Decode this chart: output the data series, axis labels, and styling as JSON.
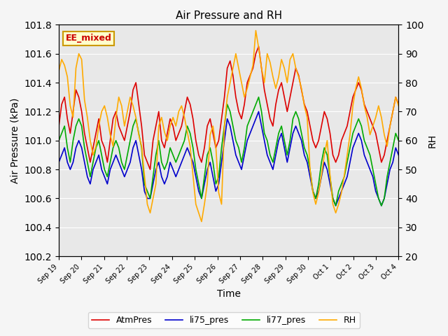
{
  "title": "Air Pressure and RH",
  "xlabel": "Time",
  "ylabel_left": "Air Pressure (kPa)",
  "ylabel_right": "RH",
  "ylim_left": [
    100.2,
    101.8
  ],
  "ylim_right": [
    20,
    100
  ],
  "background_color": "#e8e8e8",
  "annotation_text": "EE_mixed",
  "annotation_bg": "#ffffcc",
  "annotation_border": "#cc9900",
  "annotation_text_color": "#cc0000",
  "legend_entries": [
    "AtmPres",
    "li75_pres",
    "li77_pres",
    "RH"
  ],
  "line_colors": [
    "#dd0000",
    "#0000cc",
    "#00aa00",
    "#ffaa00"
  ],
  "x_tick_labels": [
    "Sep 19",
    "Sep 20",
    "Sep 21",
    "Sep 22",
    "Sep 23",
    "Sep 24",
    "Sep 25",
    "Sep 26",
    "Sep 27",
    "Sep 28",
    "Sep 29",
    "Sep 30",
    "Oct 1",
    "Oct 2",
    "Oct 3",
    "Oct 4"
  ],
  "atm_pres": [
    101.1,
    101.25,
    101.3,
    101.15,
    101.05,
    101.2,
    101.35,
    101.3,
    101.2,
    101.05,
    100.95,
    100.85,
    100.95,
    101.05,
    101.15,
    101.0,
    100.95,
    100.85,
    101.0,
    101.15,
    101.2,
    101.1,
    101.05,
    101.0,
    101.1,
    101.2,
    101.35,
    101.4,
    101.25,
    101.1,
    100.9,
    100.85,
    100.8,
    101.0,
    101.1,
    101.2,
    101.0,
    100.95,
    101.05,
    101.15,
    101.1,
    101.0,
    101.05,
    101.1,
    101.2,
    101.3,
    101.25,
    101.15,
    101.0,
    100.9,
    100.85,
    100.95,
    101.1,
    101.15,
    101.05,
    100.95,
    101.0,
    101.15,
    101.3,
    101.5,
    101.55,
    101.45,
    101.3,
    101.2,
    101.15,
    101.25,
    101.4,
    101.45,
    101.5,
    101.6,
    101.65,
    101.5,
    101.35,
    101.25,
    101.15,
    101.1,
    101.25,
    101.35,
    101.4,
    101.3,
    101.2,
    101.3,
    101.4,
    101.5,
    101.45,
    101.35,
    101.25,
    101.2,
    101.1,
    101.0,
    100.95,
    101.0,
    101.1,
    101.2,
    101.15,
    101.05,
    100.9,
    100.85,
    100.9,
    101.0,
    101.05,
    101.1,
    101.2,
    101.3,
    101.35,
    101.4,
    101.35,
    101.25,
    101.2,
    101.15,
    101.1,
    101.05,
    100.95,
    100.85,
    100.9,
    101.0,
    101.1,
    101.2,
    101.3,
    101.25
  ],
  "li75_pres": [
    100.85,
    100.9,
    100.95,
    100.85,
    100.8,
    100.85,
    100.95,
    101.0,
    100.95,
    100.85,
    100.75,
    100.7,
    100.8,
    100.85,
    100.9,
    100.8,
    100.75,
    100.7,
    100.8,
    100.85,
    100.9,
    100.85,
    100.8,
    100.75,
    100.8,
    100.85,
    100.95,
    101.0,
    100.9,
    100.8,
    100.65,
    100.6,
    100.6,
    100.7,
    100.8,
    100.85,
    100.75,
    100.7,
    100.75,
    100.85,
    100.8,
    100.75,
    100.8,
    100.85,
    100.9,
    100.95,
    100.9,
    100.85,
    100.75,
    100.65,
    100.6,
    100.7,
    100.8,
    100.85,
    100.75,
    100.65,
    100.7,
    100.85,
    101.0,
    101.15,
    101.1,
    101.0,
    100.9,
    100.85,
    100.8,
    100.9,
    101.0,
    101.05,
    101.1,
    101.15,
    101.2,
    101.1,
    101.0,
    100.9,
    100.85,
    100.8,
    100.9,
    101.0,
    101.05,
    100.95,
    100.85,
    100.95,
    101.05,
    101.1,
    101.05,
    101.0,
    100.9,
    100.85,
    100.75,
    100.65,
    100.6,
    100.65,
    100.75,
    100.85,
    100.8,
    100.7,
    100.6,
    100.55,
    100.6,
    100.65,
    100.7,
    100.75,
    100.85,
    100.95,
    101.0,
    101.05,
    101.0,
    100.9,
    100.85,
    100.8,
    100.75,
    100.65,
    100.6,
    100.55,
    100.6,
    100.7,
    100.8,
    100.85,
    100.95,
    100.9
  ],
  "li77_pres": [
    101.0,
    101.05,
    101.1,
    100.95,
    100.85,
    101.0,
    101.1,
    101.15,
    101.1,
    100.95,
    100.85,
    100.75,
    100.85,
    100.95,
    101.0,
    100.9,
    100.8,
    100.75,
    100.85,
    100.95,
    101.0,
    100.95,
    100.85,
    100.8,
    100.9,
    101.0,
    101.1,
    101.15,
    101.05,
    100.95,
    100.7,
    100.65,
    100.6,
    100.75,
    100.9,
    101.0,
    100.85,
    100.8,
    100.85,
    100.95,
    100.9,
    100.85,
    100.9,
    100.95,
    101.0,
    101.1,
    101.05,
    100.95,
    100.8,
    100.7,
    100.6,
    100.75,
    100.9,
    100.95,
    100.85,
    100.7,
    100.75,
    100.95,
    101.1,
    101.25,
    101.2,
    101.1,
    101.0,
    100.95,
    100.85,
    100.95,
    101.1,
    101.15,
    101.2,
    101.25,
    101.3,
    101.2,
    101.05,
    101.0,
    100.9,
    100.85,
    100.95,
    101.05,
    101.1,
    101.0,
    100.9,
    101.0,
    101.15,
    101.2,
    101.15,
    101.05,
    100.95,
    100.9,
    100.8,
    100.65,
    100.6,
    100.7,
    100.85,
    100.95,
    100.9,
    100.75,
    100.6,
    100.55,
    100.65,
    100.7,
    100.75,
    100.85,
    100.95,
    101.05,
    101.1,
    101.15,
    101.1,
    101.0,
    100.95,
    100.9,
    100.8,
    100.7,
    100.6,
    100.55,
    100.6,
    100.75,
    100.85,
    100.95,
    101.05,
    101.0
  ],
  "rh": [
    84,
    88,
    86,
    82,
    72,
    68,
    85,
    90,
    88,
    74,
    68,
    60,
    55,
    58,
    65,
    70,
    72,
    68,
    62,
    58,
    68,
    75,
    72,
    65,
    70,
    75,
    72,
    68,
    62,
    58,
    48,
    38,
    35,
    40,
    45,
    65,
    68,
    63,
    60,
    65,
    68,
    65,
    70,
    72,
    68,
    63,
    58,
    48,
    38,
    35,
    32,
    38,
    45,
    62,
    65,
    58,
    42,
    38,
    65,
    75,
    80,
    85,
    90,
    85,
    80,
    75,
    78,
    82,
    86,
    98,
    92,
    85,
    80,
    90,
    87,
    82,
    78,
    82,
    88,
    85,
    80,
    88,
    90,
    85,
    82,
    78,
    72,
    68,
    50,
    42,
    38,
    42,
    48,
    55,
    60,
    48,
    38,
    35,
    38,
    42,
    48,
    55,
    62,
    72,
    78,
    82,
    78,
    72,
    68,
    62,
    65,
    68,
    72,
    68,
    62,
    58,
    65,
    70,
    75,
    72
  ]
}
